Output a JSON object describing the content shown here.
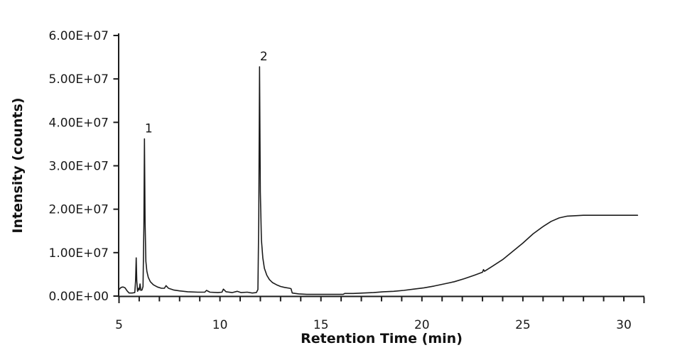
{
  "chart_data": {
    "type": "line",
    "title": "",
    "xlabel": "Retention Time (min)",
    "ylabel": "Intensity (counts)",
    "xlim": [
      5,
      31
    ],
    "ylim": [
      0,
      60000000.0
    ],
    "grid": false,
    "legend": null,
    "background_color": "#ffffff",
    "line_color": "#1c1c1c",
    "axis_color": "#1c1c1c",
    "text_color": "#1a1a1a",
    "x_major_ticks": [
      {
        "value": 5,
        "label": "5"
      },
      {
        "value": 10,
        "label": "10"
      },
      {
        "value": 15,
        "label": "15"
      },
      {
        "value": 20,
        "label": "20"
      },
      {
        "value": 25,
        "label": "25"
      },
      {
        "value": 30,
        "label": "30"
      }
    ],
    "x_minor_tick_interval": 1,
    "y_ticks": [
      {
        "value": 0,
        "label": "0.00E+00"
      },
      {
        "value": 10000000.0,
        "label": "1.00E+07"
      },
      {
        "value": 20000000.0,
        "label": "2.00E+07"
      },
      {
        "value": 30000000.0,
        "label": "3.00E+07"
      },
      {
        "value": 40000000.0,
        "label": "4.00E+07"
      },
      {
        "value": 50000000.0,
        "label": "5.00E+07"
      },
      {
        "value": 60000000.0,
        "label": "6.00E+07"
      }
    ],
    "peak_annotations": [
      {
        "label": "1",
        "x": 6.26,
        "y": 36200000.0
      },
      {
        "label": "2",
        "x": 11.96,
        "y": 52800000.0
      }
    ],
    "series": [
      {
        "name": "chromatogram",
        "points": [
          [
            5.0,
            1500000.0
          ],
          [
            5.1,
            2000000.0
          ],
          [
            5.2,
            2100000.0
          ],
          [
            5.3,
            1900000.0
          ],
          [
            5.4,
            1200000.0
          ],
          [
            5.5,
            700000.0
          ],
          [
            5.65,
            700000.0
          ],
          [
            5.78,
            800000.0
          ],
          [
            5.82,
            3500000.0
          ],
          [
            5.85,
            8800000.0
          ],
          [
            5.88,
            3500000.0
          ],
          [
            5.92,
            1100000.0
          ],
          [
            5.97,
            1800000.0
          ],
          [
            6.0,
            1400000.0
          ],
          [
            6.04,
            2800000.0
          ],
          [
            6.08,
            1300000.0
          ],
          [
            6.14,
            1400000.0
          ],
          [
            6.19,
            2200000.0
          ],
          [
            6.23,
            16000000.0
          ],
          [
            6.26,
            36200000.0
          ],
          [
            6.29,
            17000000.0
          ],
          [
            6.33,
            8000000.0
          ],
          [
            6.38,
            5700000.0
          ],
          [
            6.45,
            4300000.0
          ],
          [
            6.55,
            3300000.0
          ],
          [
            6.7,
            2600000.0
          ],
          [
            6.9,
            2100000.0
          ],
          [
            7.1,
            1800000.0
          ],
          [
            7.25,
            1800000.0
          ],
          [
            7.33,
            2400000.0
          ],
          [
            7.45,
            1800000.0
          ],
          [
            7.7,
            1400000.0
          ],
          [
            8.0,
            1200000.0
          ],
          [
            8.4,
            1000000.0
          ],
          [
            8.9,
            900000.0
          ],
          [
            9.25,
            900000.0
          ],
          [
            9.33,
            1300000.0
          ],
          [
            9.5,
            900000.0
          ],
          [
            9.9,
            800000.0
          ],
          [
            10.1,
            900000.0
          ],
          [
            10.17,
            1600000.0
          ],
          [
            10.3,
            1000000.0
          ],
          [
            10.6,
            800000.0
          ],
          [
            10.85,
            1100000.0
          ],
          [
            11.05,
            800000.0
          ],
          [
            11.35,
            900000.0
          ],
          [
            11.6,
            700000.0
          ],
          [
            11.8,
            800000.0
          ],
          [
            11.88,
            1500000.0
          ],
          [
            11.92,
            18000000.0
          ],
          [
            11.96,
            52800000.0
          ],
          [
            12.0,
            24000000.0
          ],
          [
            12.05,
            13000000.0
          ],
          [
            12.12,
            8800000.0
          ],
          [
            12.2,
            6400000.0
          ],
          [
            12.32,
            4800000.0
          ],
          [
            12.45,
            3800000.0
          ],
          [
            12.6,
            3100000.0
          ],
          [
            12.8,
            2600000.0
          ],
          [
            13.0,
            2200000.0
          ],
          [
            13.2,
            2000000.0
          ],
          [
            13.45,
            1800000.0
          ],
          [
            13.52,
            1700000.0
          ],
          [
            13.58,
            700000.0
          ],
          [
            13.9,
            500000.0
          ],
          [
            14.3,
            400000.0
          ],
          [
            14.9,
            400000.0
          ],
          [
            15.6,
            400000.0
          ],
          [
            16.1,
            400000.0
          ],
          [
            16.18,
            600000.0
          ],
          [
            16.6,
            600000.0
          ],
          [
            17.1,
            700000.0
          ],
          [
            17.6,
            800000.0
          ],
          [
            18.1,
            1000000.0
          ],
          [
            18.6,
            1100000.0
          ],
          [
            19.1,
            1300000.0
          ],
          [
            19.6,
            1600000.0
          ],
          [
            20.1,
            1900000.0
          ],
          [
            20.6,
            2300000.0
          ],
          [
            21.1,
            2800000.0
          ],
          [
            21.6,
            3300000.0
          ],
          [
            22.1,
            4000000.0
          ],
          [
            22.6,
            4800000.0
          ],
          [
            23.0,
            5500000.0
          ],
          [
            23.05,
            6100000.0
          ],
          [
            23.1,
            5700000.0
          ],
          [
            23.5,
            6900000.0
          ],
          [
            24.0,
            8400000.0
          ],
          [
            24.5,
            10300000.0
          ],
          [
            25.0,
            12200000.0
          ],
          [
            25.5,
            14300000.0
          ],
          [
            26.0,
            16000000.0
          ],
          [
            26.4,
            17200000.0
          ],
          [
            26.8,
            18000000.0
          ],
          [
            27.2,
            18400000.0
          ],
          [
            27.6,
            18500000.0
          ],
          [
            28.0,
            18600000.0
          ],
          [
            28.5,
            18600000.0
          ],
          [
            29.0,
            18600000.0
          ],
          [
            29.5,
            18600000.0
          ],
          [
            30.0,
            18600000.0
          ],
          [
            30.68,
            18600000.0
          ]
        ]
      }
    ]
  }
}
